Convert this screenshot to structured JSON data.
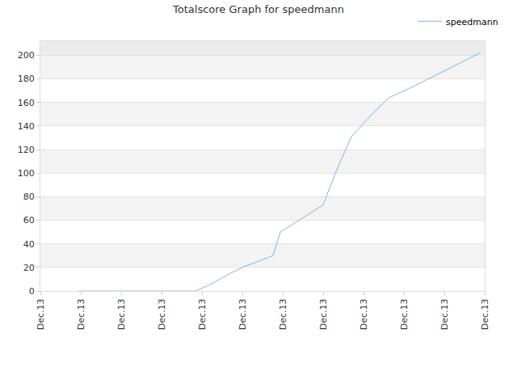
{
  "chart_data": {
    "type": "line",
    "title": "Totalscore Graph for speedmann",
    "x": [
      0.94,
      3.84,
      4.24,
      4.7,
      5.0,
      5.76,
      5.94,
      7.0,
      7.3,
      7.7,
      8.1,
      8.62,
      9.2,
      10.88
    ],
    "series": [
      {
        "name": "speedmann",
        "color": "#7cb5ec",
        "values": [
          0,
          0,
          6,
          15,
          20,
          30,
          50,
          73,
          100,
          131,
          146,
          164,
          173,
          202
        ]
      }
    ],
    "xlim": [
      0,
      11
    ],
    "xticks": [
      {
        "value": 0,
        "label": "Dec.13"
      },
      {
        "value": 1,
        "label": "Dec.13"
      },
      {
        "value": 2,
        "label": "Dec.13"
      },
      {
        "value": 3,
        "label": "Dec.13"
      },
      {
        "value": 4,
        "label": "Dec.13"
      },
      {
        "value": 5,
        "label": "Dec.13"
      },
      {
        "value": 6,
        "label": "Dec.13"
      },
      {
        "value": 7,
        "label": "Dec.13"
      },
      {
        "value": 8,
        "label": "Dec.13"
      },
      {
        "value": 9,
        "label": "Dec.13"
      },
      {
        "value": 10,
        "label": "Dec.13"
      },
      {
        "value": 11,
        "label": "Dec.13"
      }
    ],
    "ylim": [
      0,
      212
    ],
    "yticks": [
      0,
      20,
      40,
      60,
      80,
      100,
      120,
      140,
      160,
      180,
      200
    ],
    "grid": true,
    "legend": "top right"
  }
}
